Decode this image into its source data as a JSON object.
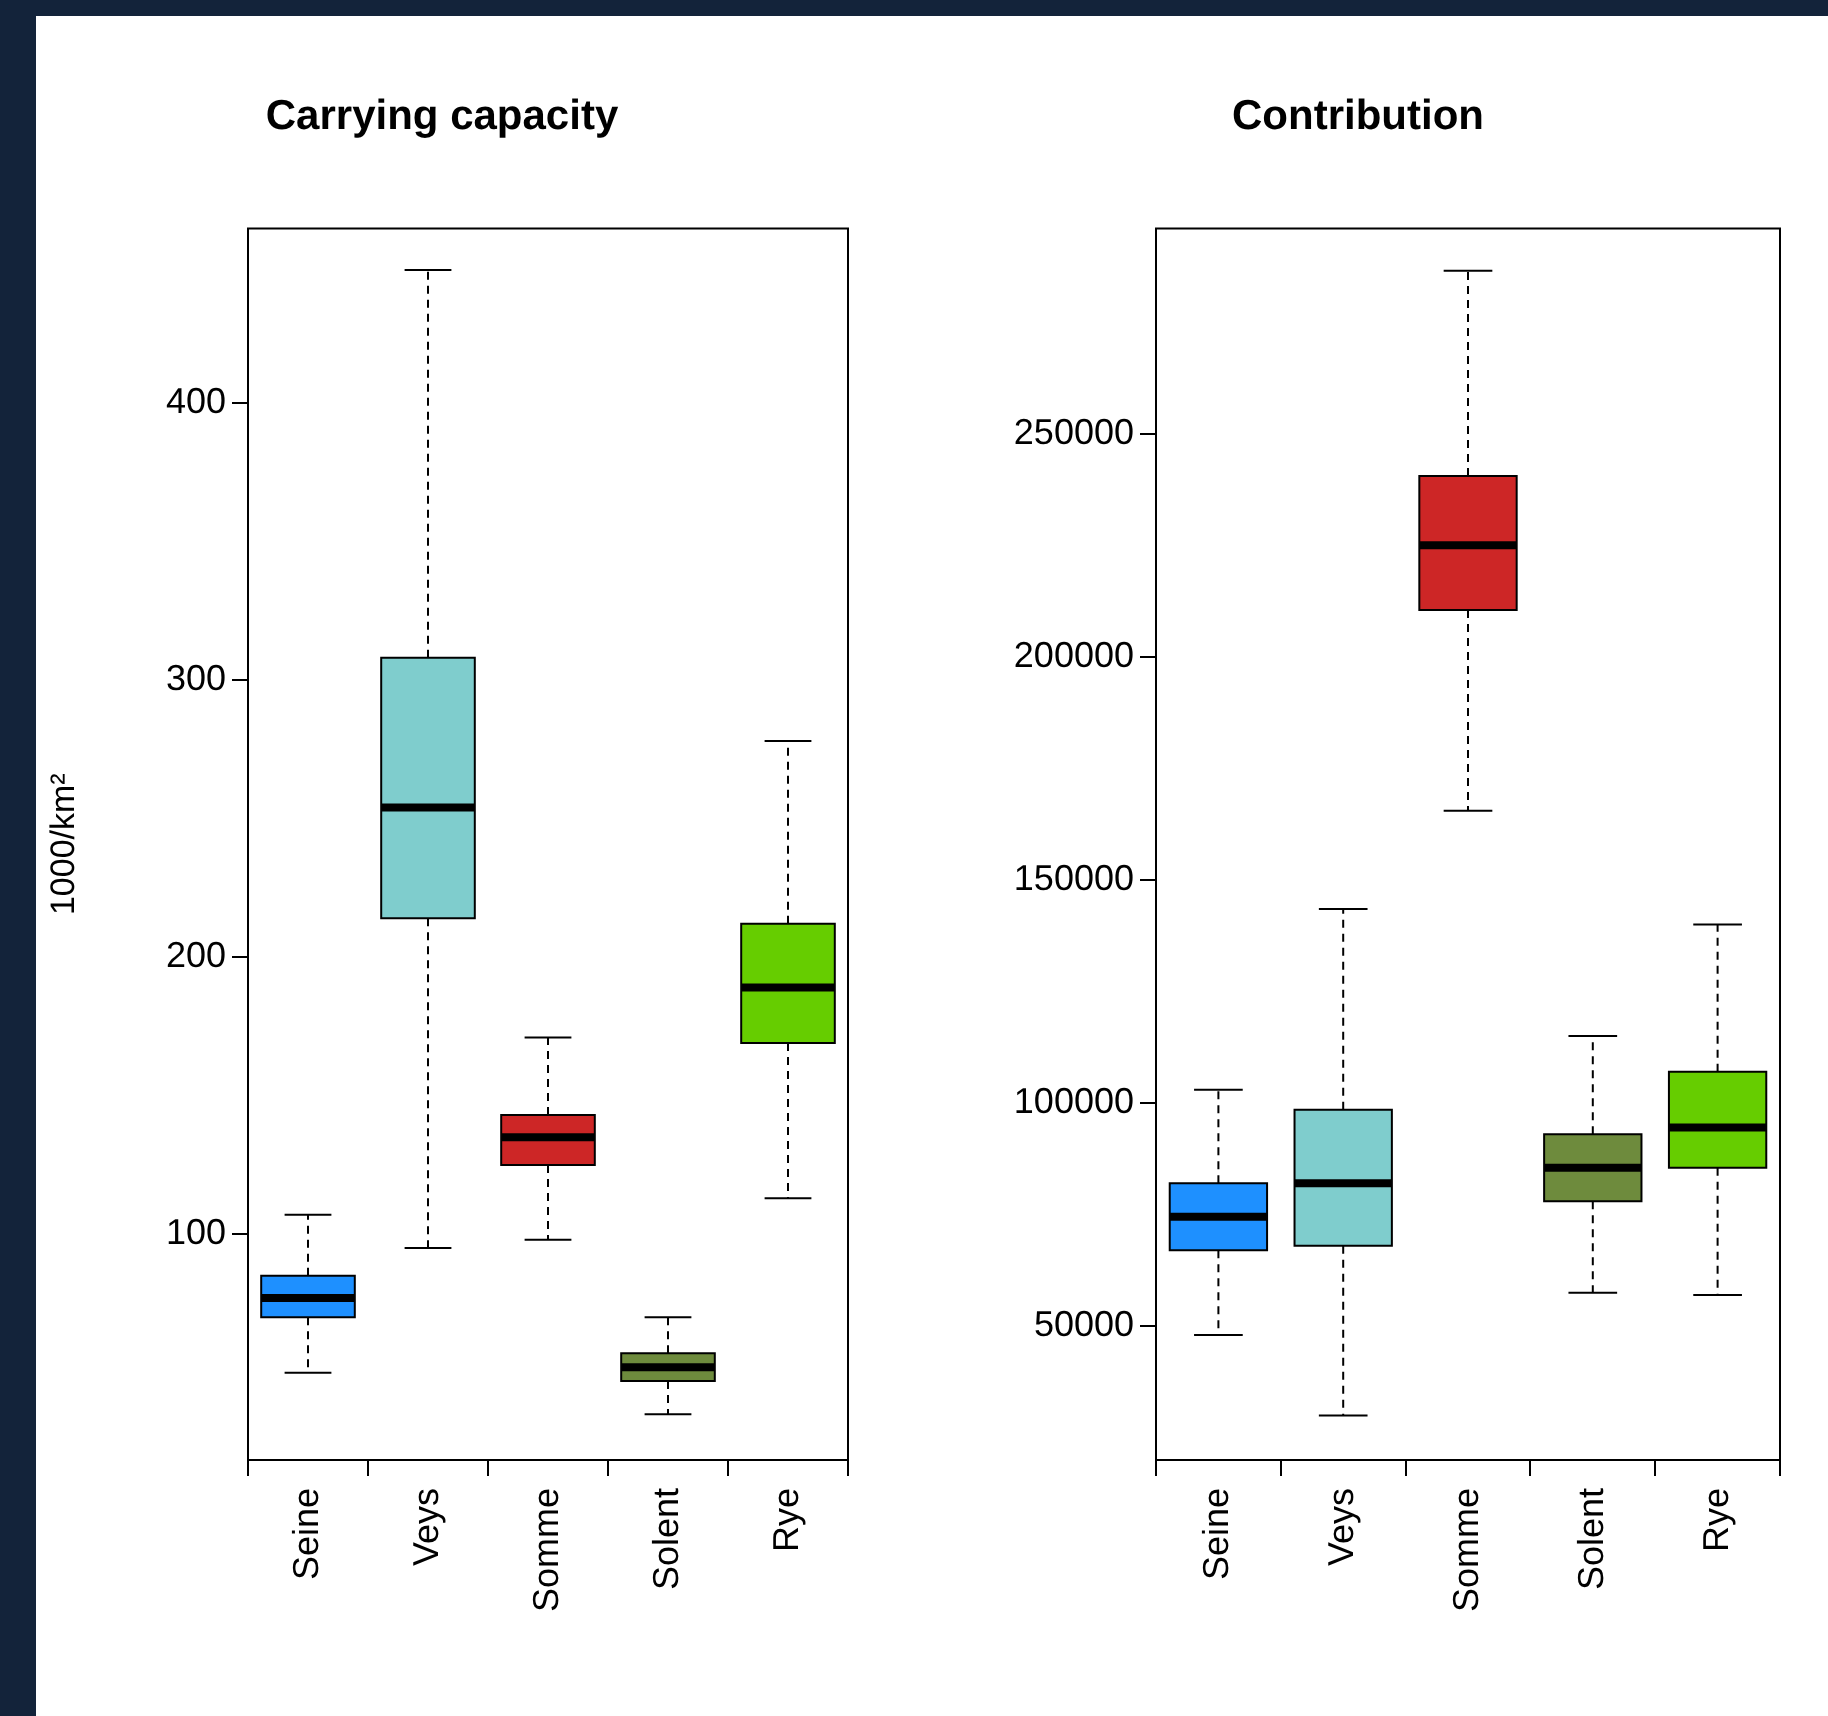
{
  "chart_data": [
    {
      "type": "box",
      "title": "Carrying capacity",
      "ylabel": "1000/km²",
      "categories": [
        "Seine",
        "Veys",
        "Somme",
        "Solent",
        "Rye"
      ],
      "colors": [
        "#1e90ff",
        "#7fcdcd",
        "#cd2626",
        "#6e8b3d",
        "#66cd00"
      ],
      "boxes": [
        {
          "low": 50,
          "q1": 70,
          "median": 77,
          "q3": 85,
          "high": 107
        },
        {
          "low": 95,
          "q1": 214,
          "median": 254,
          "q3": 308,
          "high": 448
        },
        {
          "low": 98,
          "q1": 125,
          "median": 135,
          "q3": 143,
          "high": 171
        },
        {
          "low": 35,
          "q1": 47,
          "median": 52,
          "q3": 57,
          "high": 70
        },
        {
          "low": 113,
          "q1": 169,
          "median": 189,
          "q3": 212,
          "high": 278
        }
      ],
      "ylim": [
        18.5,
        463
      ],
      "yticks": [
        100,
        200,
        300,
        400
      ]
    },
    {
      "type": "box",
      "title": "Contribution",
      "categories": [
        "Seine",
        "Veys",
        "Somme",
        "Solent",
        "Rye"
      ],
      "colors": [
        "#1e90ff",
        "#7fcdcd",
        "#cd2626",
        "#6e8b3d",
        "#66cd00"
      ],
      "boxes": [
        {
          "low": 48000,
          "q1": 67000,
          "median": 74500,
          "q3": 82000,
          "high": 103000
        },
        {
          "low": 30000,
          "q1": 68000,
          "median": 82000,
          "q3": 98500,
          "high": 143500
        },
        {
          "low": 165500,
          "q1": 210500,
          "median": 225000,
          "q3": 240500,
          "high": 286500
        },
        {
          "low": 57500,
          "q1": 78000,
          "median": 85500,
          "q3": 93000,
          "high": 115000
        },
        {
          "low": 57000,
          "q1": 85500,
          "median": 94500,
          "q3": 107000,
          "high": 140000
        }
      ],
      "ylim": [
        20000,
        296000
      ],
      "yticks": [
        50000,
        100000,
        150000,
        200000,
        250000
      ]
    }
  ]
}
